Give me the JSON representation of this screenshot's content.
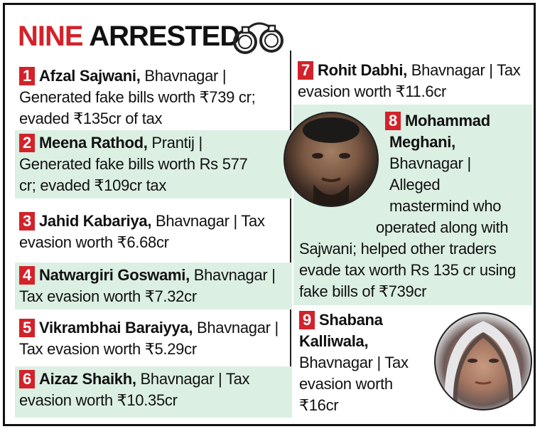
{
  "header": {
    "title_red": "NINE",
    "title_black": "ARRESTED",
    "icon": "handcuffs-icon"
  },
  "entries": [
    {
      "num": "1",
      "name": "Afzal Sajwani,",
      "lines": [
        " Bhavnagar |",
        "Generated fake bills worth ₹739 cr;",
        "evaded ₹135cr of tax"
      ]
    },
    {
      "num": "2",
      "name": "Meena Rathod,",
      "lines": [
        " Prantij |",
        "Generated fake bills worth Rs 577",
        "cr; evaded ₹109cr tax"
      ]
    },
    {
      "num": "3",
      "name": "Jahid Kabariya,",
      "lines": [
        " Bhavnagar | Tax",
        "evasion worth ₹6.68cr"
      ]
    },
    {
      "num": "4",
      "name": "Natwargiri Goswami,",
      "lines": [
        " Bhavnagar |",
        "Tax evasion worth ₹7.32cr"
      ]
    },
    {
      "num": "5",
      "name": "Vikrambhai Baraiyya,",
      "lines": [
        " Bhavnagar |",
        "Tax evasion worth ₹5.29cr"
      ]
    },
    {
      "num": "6",
      "name": "Aizaz Shaikh,",
      "lines": [
        " Bhavnagar | Tax",
        "evasion worth ₹10.35cr"
      ]
    },
    {
      "num": "7",
      "name": "Rohit Dabhi,",
      "lines": [
        " Bhavnagar | Tax",
        "evasion worth ₹11.6cr"
      ]
    },
    {
      "num": "8",
      "name": "Mohammad",
      "lines": [
        "Meghani,",
        "Bhavnagar |",
        "Alleged",
        "mastermind who",
        "operated along with",
        "Sajwani; helped other traders",
        "evade tax worth Rs 135 cr using",
        "fake bills of ₹739cr"
      ]
    },
    {
      "num": "9",
      "name": "Shabana",
      "lines": [
        "Kalliwala,",
        "Bhavnagar | Tax",
        "evasion worth",
        "₹16cr"
      ]
    }
  ],
  "colors": {
    "accent": "#d3222a",
    "shade": "#dcefe3"
  }
}
